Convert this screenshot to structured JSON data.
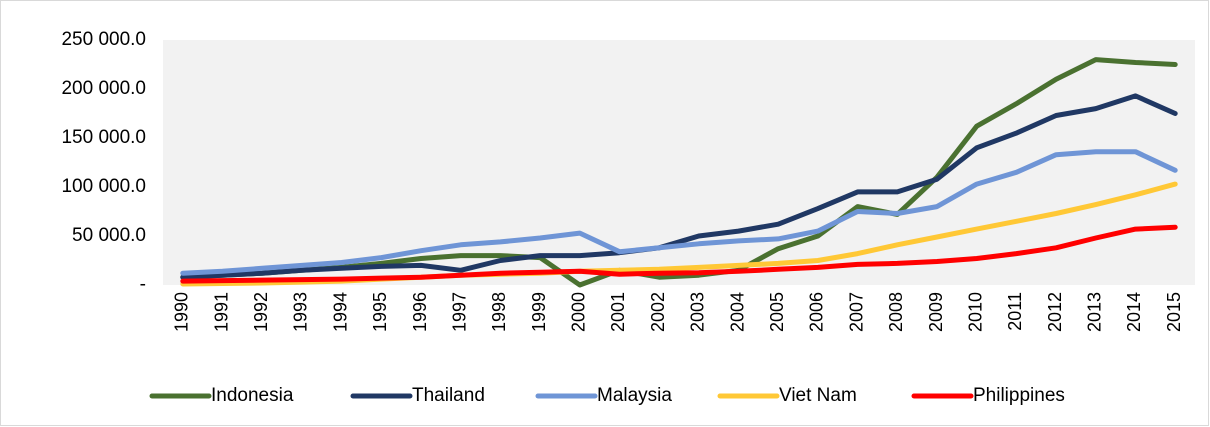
{
  "chart_data": {
    "type": "line",
    "categories": [
      "1990",
      "1991",
      "1992",
      "1993",
      "1994",
      "1995",
      "1996",
      "1997",
      "1998",
      "1999",
      "2000",
      "2001",
      "2002",
      "2003",
      "2004",
      "2005",
      "2006",
      "2007",
      "2008",
      "2009",
      "2010",
      "2011",
      "2012",
      "2013",
      "2014",
      "2015"
    ],
    "ylim": [
      0,
      250000
    ],
    "yticks": [
      {
        "value": 0,
        "label": "-"
      },
      {
        "value": 50000,
        "label": "50 000.0"
      },
      {
        "value": 100000,
        "label": "100 000.0"
      },
      {
        "value": 150000,
        "label": "150 000.0"
      },
      {
        "value": 200000,
        "label": "200 000.0"
      },
      {
        "value": 250000,
        "label": "250 000.0"
      }
    ],
    "legend": "bottom",
    "series": [
      {
        "name": "Indonesia",
        "color": "#4a7130",
        "values": [
          8000,
          10000,
          12000,
          15000,
          18000,
          22000,
          27000,
          30000,
          30000,
          28000,
          0,
          15000,
          8000,
          10000,
          15000,
          37000,
          50000,
          80000,
          72000,
          110000,
          162000,
          185000,
          210000,
          230000,
          227000,
          225000
        ]
      },
      {
        "name": "Thailand",
        "color": "#203864",
        "values": [
          8000,
          10000,
          12000,
          15000,
          17000,
          19000,
          20000,
          15000,
          25000,
          30000,
          30000,
          33000,
          38000,
          50000,
          55000,
          62000,
          78000,
          95000,
          95000,
          108000,
          140000,
          155000,
          173000,
          180000,
          193000,
          175000
        ]
      },
      {
        "name": "Malaysia",
        "color": "#6f95d6",
        "values": [
          12000,
          14000,
          17000,
          20000,
          23000,
          28000,
          35000,
          41000,
          44000,
          48000,
          53000,
          34000,
          38000,
          42000,
          45000,
          47000,
          55000,
          75000,
          73000,
          80000,
          103000,
          115000,
          133000,
          136000,
          136000,
          117000
        ]
      },
      {
        "name": "Viet Nam",
        "color": "#ffc836",
        "values": [
          1000,
          1500,
          2000,
          3000,
          4000,
          6000,
          8000,
          10000,
          11000,
          12000,
          14000,
          15000,
          16000,
          18000,
          20000,
          22000,
          25000,
          32000,
          41000,
          49000,
          57000,
          65000,
          73000,
          82000,
          92000,
          103000
        ]
      },
      {
        "name": "Philippines",
        "color": "#ff0000",
        "values": [
          4000,
          4500,
          5000,
          5500,
          6000,
          7000,
          8000,
          10000,
          12000,
          13000,
          14000,
          11000,
          12000,
          12500,
          14000,
          16000,
          18000,
          21000,
          22000,
          24000,
          27000,
          32000,
          38000,
          48000,
          57000,
          59000
        ]
      }
    ]
  }
}
